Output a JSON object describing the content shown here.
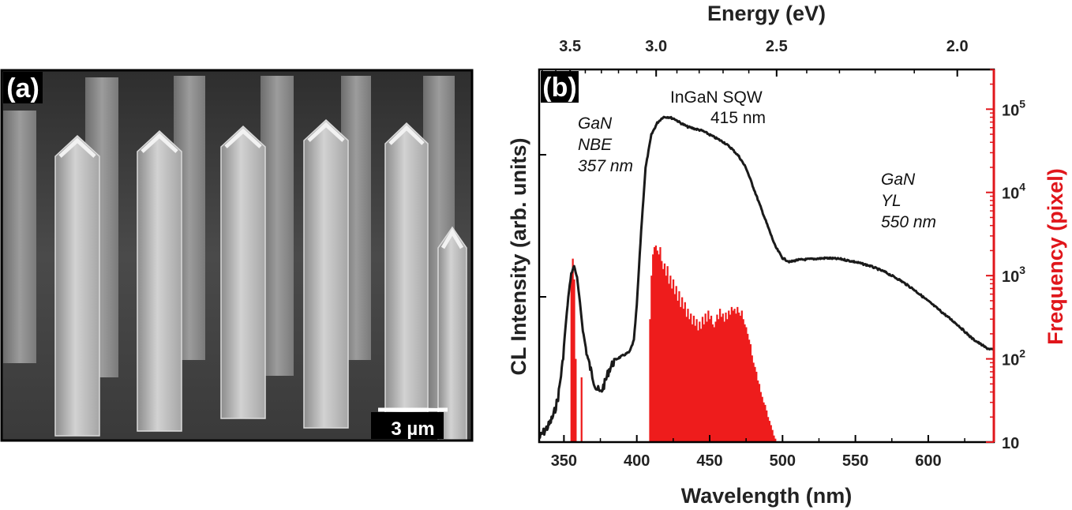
{
  "panel_a": {
    "label": "(a)",
    "scale_bar_label": "3 µm"
  },
  "colors": {
    "spectrum": "#1a1a1a",
    "histogram": "#ee1c1c",
    "right_axis": "#e0161b",
    "sem_background": "#4a4a4a",
    "sem_pillar": "#b9b9b9"
  },
  "chart_data": {
    "type": "line",
    "panel_label": "(b)",
    "xlabel": "Wavelength (nm)",
    "x2label": "Energy (eV)",
    "ylabel": "CL Intensity (arb. units)",
    "y2label": "Frequency (pixel)",
    "xlim": [
      333,
      645
    ],
    "x_ticks": [
      350,
      400,
      450,
      500,
      550,
      600
    ],
    "x_tick_labels": [
      "350",
      "400",
      "450",
      "500",
      "550",
      "600"
    ],
    "x2_ticks": [
      3.5,
      3.0,
      2.5,
      2.0
    ],
    "x2_tick_labels": [
      "3.5",
      "3.0",
      "2.5",
      "2.0"
    ],
    "y2_scale": "log",
    "y2lim": [
      10,
      300000
    ],
    "y2_tick_labels": [
      {
        "value": 10,
        "base": "10",
        "exp": ""
      },
      {
        "value": 100,
        "base": "10",
        "exp": "2"
      },
      {
        "value": 1000,
        "base": "10",
        "exp": "3"
      },
      {
        "value": 10000,
        "base": "10",
        "exp": "4"
      },
      {
        "value": 100000,
        "base": "10",
        "exp": "5"
      }
    ],
    "grid": false,
    "annotations": [
      {
        "lines": [
          "GaN",
          "NBE",
          "357 nm"
        ],
        "italic": true
      },
      {
        "lines": [
          "InGaN SQW",
          "415 nm"
        ],
        "italic": false
      },
      {
        "lines": [
          "GaN",
          "YL",
          "550 nm"
        ],
        "italic": true
      }
    ],
    "spectrum": {
      "x": [
        333,
        337,
        340,
        343,
        346,
        349,
        351,
        353,
        355,
        357,
        359,
        361,
        363,
        366,
        369,
        372,
        375,
        378,
        381,
        385,
        390,
        395,
        398,
        400,
        403,
        406,
        410,
        414,
        418,
        422,
        426,
        430,
        435,
        440,
        445,
        450,
        455,
        460,
        465,
        470,
        475,
        480,
        485,
        490,
        495,
        500,
        505,
        510,
        520,
        530,
        540,
        550,
        560,
        570,
        580,
        590,
        600,
        610,
        620,
        630,
        640,
        645
      ],
      "y": [
        0.02,
        0.06,
        0.09,
        0.14,
        0.23,
        0.4,
        0.58,
        0.74,
        0.86,
        0.9,
        0.84,
        0.71,
        0.57,
        0.44,
        0.35,
        0.28,
        0.25,
        0.3,
        0.37,
        0.42,
        0.44,
        0.46,
        0.52,
        0.7,
        1.08,
        1.4,
        1.57,
        1.63,
        1.66,
        1.66,
        1.65,
        1.63,
        1.61,
        1.6,
        1.59,
        1.57,
        1.55,
        1.53,
        1.5,
        1.46,
        1.4,
        1.3,
        1.2,
        1.1,
        1.0,
        0.94,
        0.92,
        0.93,
        0.935,
        0.94,
        0.935,
        0.92,
        0.9,
        0.87,
        0.83,
        0.78,
        0.72,
        0.66,
        0.6,
        0.53,
        0.48,
        0.47
      ]
    },
    "histogram": {
      "bin_width": 1,
      "x": [
        354,
        355,
        356,
        357,
        358,
        359,
        360,
        361,
        362,
        363,
        364,
        408,
        409,
        410,
        411,
        412,
        413,
        414,
        415,
        416,
        417,
        418,
        419,
        420,
        421,
        422,
        423,
        424,
        425,
        426,
        427,
        428,
        429,
        430,
        431,
        432,
        433,
        434,
        435,
        436,
        437,
        438,
        439,
        440,
        441,
        442,
        443,
        444,
        445,
        446,
        447,
        448,
        449,
        450,
        451,
        452,
        453,
        454,
        455,
        456,
        457,
        458,
        459,
        460,
        461,
        462,
        463,
        464,
        465,
        466,
        467,
        468,
        469,
        470,
        471,
        472,
        473,
        474,
        475,
        476,
        477,
        478,
        479,
        480,
        481,
        482,
        483,
        484,
        485,
        486,
        487,
        488,
        489,
        490,
        491,
        492,
        493,
        494,
        495,
        496,
        497,
        498,
        499,
        500,
        501
      ],
      "counts": [
        10,
        1000,
        1600,
        900,
        100,
        10,
        10,
        10,
        60,
        10,
        10,
        10,
        300,
        1000,
        1800,
        2200,
        2300,
        2000,
        1800,
        2200,
        1500,
        1200,
        1400,
        1000,
        1300,
        800,
        1000,
        700,
        900,
        600,
        750,
        500,
        650,
        420,
        550,
        400,
        480,
        320,
        400,
        300,
        350,
        260,
        330,
        250,
        300,
        220,
        280,
        230,
        320,
        260,
        350,
        280,
        380,
        300,
        330,
        260,
        240,
        280,
        340,
        300,
        400,
        320,
        350,
        280,
        360,
        300,
        380,
        340,
        420,
        380,
        400,
        350,
        420,
        360,
        330,
        380,
        300,
        260,
        240,
        200,
        170,
        150,
        110,
        90,
        80,
        70,
        55,
        50,
        40,
        35,
        30,
        28,
        24,
        20,
        18,
        16,
        14,
        12,
        11,
        10,
        10,
        10,
        10,
        10,
        10
      ]
    }
  }
}
